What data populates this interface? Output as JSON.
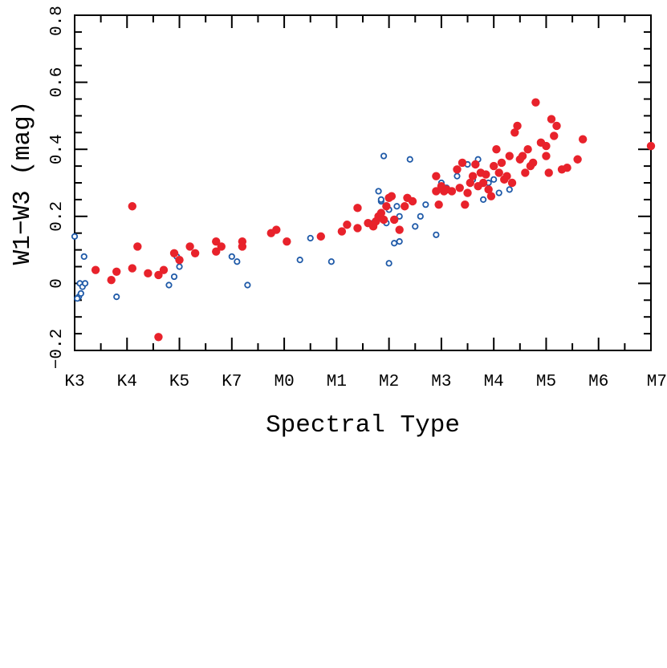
{
  "chart_data": {
    "type": "scatter",
    "xlabel": "Spectral Type",
    "ylabel": "W1−W3 (mag)",
    "xlim": [
      0,
      11
    ],
    "ylim": [
      -0.2,
      0.8
    ],
    "x_ticks": [
      {
        "value": 0,
        "label": "K3"
      },
      {
        "value": 1,
        "label": "K4"
      },
      {
        "value": 2,
        "label": "K5"
      },
      {
        "value": 3,
        "label": "K7"
      },
      {
        "value": 4,
        "label": "M0"
      },
      {
        "value": 5,
        "label": "M1"
      },
      {
        "value": 6,
        "label": "M2"
      },
      {
        "value": 7,
        "label": "M3"
      },
      {
        "value": 8,
        "label": "M4"
      },
      {
        "value": 9,
        "label": "M5"
      },
      {
        "value": 10,
        "label": "M6"
      },
      {
        "value": 11,
        "label": "M7"
      }
    ],
    "y_ticks": [
      {
        "value": -0.2,
        "label": "−0.2"
      },
      {
        "value": 0,
        "label": "0"
      },
      {
        "value": 0.2,
        "label": "0.2"
      },
      {
        "value": 0.4,
        "label": "0.4"
      },
      {
        "value": 0.6,
        "label": "0.6"
      },
      {
        "value": 0.8,
        "label": "0.8"
      }
    ],
    "series": [
      {
        "marker": "open-circle",
        "color": "#1f5aa8",
        "points": [
          [
            0.0,
            0.14
          ],
          [
            0.08,
            -0.04
          ],
          [
            0.1,
            0.0
          ],
          [
            0.12,
            -0.03
          ],
          [
            0.15,
            -0.01
          ],
          [
            0.18,
            0.08
          ],
          [
            0.2,
            0.0
          ],
          [
            0.05,
            -0.045
          ],
          [
            0.8,
            -0.04
          ],
          [
            1.8,
            -0.005
          ],
          [
            1.9,
            0.02
          ],
          [
            2.0,
            0.05
          ],
          [
            1.95,
            0.08
          ],
          [
            3.0,
            0.08
          ],
          [
            3.1,
            0.065
          ],
          [
            3.3,
            -0.005
          ],
          [
            4.3,
            0.07
          ],
          [
            4.5,
            0.135
          ],
          [
            4.9,
            0.065
          ],
          [
            5.85,
            0.245
          ],
          [
            5.95,
            0.18
          ],
          [
            6.0,
            0.22
          ],
          [
            5.7,
            0.18
          ],
          [
            5.85,
            0.25
          ],
          [
            5.8,
            0.275
          ],
          [
            5.9,
            0.38
          ],
          [
            6.0,
            0.06
          ],
          [
            6.1,
            0.12
          ],
          [
            6.2,
            0.125
          ],
          [
            6.2,
            0.2
          ],
          [
            6.15,
            0.23
          ],
          [
            6.4,
            0.37
          ],
          [
            6.5,
            0.17
          ],
          [
            6.6,
            0.2
          ],
          [
            6.7,
            0.235
          ],
          [
            6.9,
            0.145
          ],
          [
            7.0,
            0.3
          ],
          [
            7.1,
            0.285
          ],
          [
            7.3,
            0.32
          ],
          [
            7.5,
            0.355
          ],
          [
            7.6,
            0.31
          ],
          [
            7.7,
            0.37
          ],
          [
            7.8,
            0.25
          ],
          [
            7.9,
            0.3
          ],
          [
            8.0,
            0.31
          ],
          [
            8.1,
            0.27
          ],
          [
            8.3,
            0.28
          ]
        ]
      },
      {
        "marker": "filled-circle",
        "color": "#e8222b",
        "points": [
          [
            0.4,
            0.04
          ],
          [
            0.7,
            0.01
          ],
          [
            0.8,
            0.035
          ],
          [
            1.1,
            0.23
          ],
          [
            1.1,
            0.045
          ],
          [
            1.2,
            0.11
          ],
          [
            1.4,
            0.03
          ],
          [
            1.6,
            0.025
          ],
          [
            1.7,
            0.04
          ],
          [
            1.6,
            -0.16
          ],
          [
            1.9,
            0.09
          ],
          [
            2.0,
            0.07
          ],
          [
            2.2,
            0.11
          ],
          [
            2.3,
            0.09
          ],
          [
            2.7,
            0.125
          ],
          [
            2.7,
            0.095
          ],
          [
            2.8,
            0.11
          ],
          [
            3.2,
            0.125
          ],
          [
            3.2,
            0.11
          ],
          [
            3.75,
            0.15
          ],
          [
            3.85,
            0.16
          ],
          [
            4.05,
            0.125
          ],
          [
            4.7,
            0.14
          ],
          [
            5.1,
            0.155
          ],
          [
            5.2,
            0.175
          ],
          [
            5.4,
            0.165
          ],
          [
            5.4,
            0.225
          ],
          [
            5.6,
            0.18
          ],
          [
            5.7,
            0.17
          ],
          [
            5.75,
            0.185
          ],
          [
            5.8,
            0.2
          ],
          [
            5.85,
            0.21
          ],
          [
            5.9,
            0.19
          ],
          [
            5.95,
            0.23
          ],
          [
            6.0,
            0.255
          ],
          [
            6.05,
            0.26
          ],
          [
            6.1,
            0.19
          ],
          [
            6.2,
            0.16
          ],
          [
            6.3,
            0.23
          ],
          [
            6.35,
            0.255
          ],
          [
            6.45,
            0.245
          ],
          [
            6.9,
            0.32
          ],
          [
            6.9,
            0.275
          ],
          [
            6.95,
            0.235
          ],
          [
            7.0,
            0.29
          ],
          [
            7.05,
            0.275
          ],
          [
            7.1,
            0.28
          ],
          [
            7.2,
            0.275
          ],
          [
            7.3,
            0.34
          ],
          [
            7.35,
            0.285
          ],
          [
            7.4,
            0.36
          ],
          [
            7.45,
            0.235
          ],
          [
            7.5,
            0.27
          ],
          [
            7.55,
            0.3
          ],
          [
            7.6,
            0.32
          ],
          [
            7.65,
            0.355
          ],
          [
            7.7,
            0.29
          ],
          [
            7.75,
            0.33
          ],
          [
            7.8,
            0.3
          ],
          [
            7.85,
            0.325
          ],
          [
            7.9,
            0.28
          ],
          [
            7.95,
            0.26
          ],
          [
            8.0,
            0.35
          ],
          [
            8.05,
            0.4
          ],
          [
            8.1,
            0.33
          ],
          [
            8.15,
            0.36
          ],
          [
            8.2,
            0.31
          ],
          [
            8.25,
            0.32
          ],
          [
            8.3,
            0.38
          ],
          [
            8.35,
            0.3
          ],
          [
            8.4,
            0.45
          ],
          [
            8.45,
            0.47
          ],
          [
            8.5,
            0.37
          ],
          [
            8.55,
            0.38
          ],
          [
            8.6,
            0.33
          ],
          [
            8.65,
            0.4
          ],
          [
            8.7,
            0.35
          ],
          [
            8.75,
            0.36
          ],
          [
            8.8,
            0.54
          ],
          [
            8.9,
            0.42
          ],
          [
            9.0,
            0.41
          ],
          [
            9.0,
            0.38
          ],
          [
            9.05,
            0.33
          ],
          [
            9.1,
            0.49
          ],
          [
            9.15,
            0.44
          ],
          [
            9.2,
            0.47
          ],
          [
            9.3,
            0.34
          ],
          [
            9.4,
            0.345
          ],
          [
            9.6,
            0.37
          ],
          [
            9.7,
            0.43
          ],
          [
            11.0,
            0.41
          ]
        ]
      }
    ]
  }
}
